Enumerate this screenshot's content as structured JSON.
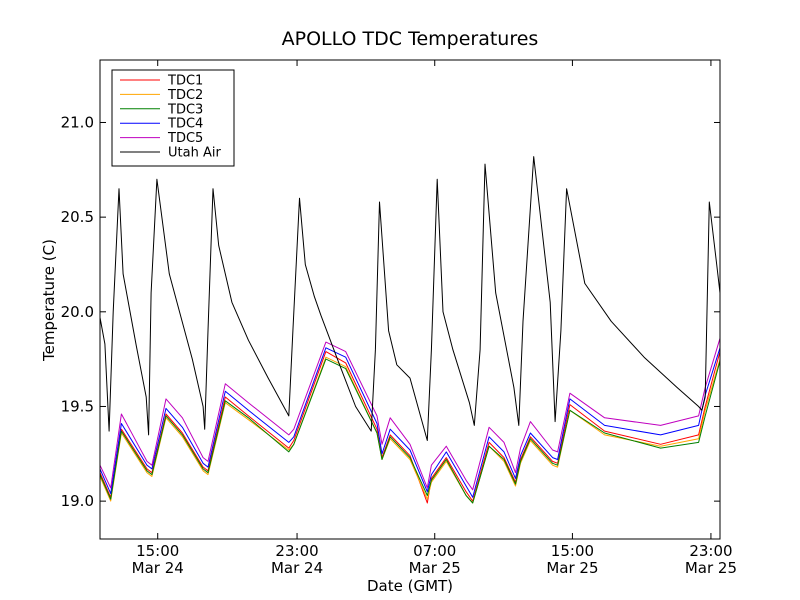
{
  "chart_data": {
    "type": "line",
    "title": "APOLLO TDC Temperatures",
    "xlabel": "Date (GMT)",
    "ylabel": "Temperature (C)",
    "x_unit": "hours since Mar 24 10:30 GMT",
    "xlim": [
      0,
      37.6
    ],
    "ylim": [
      18.8,
      21.33
    ],
    "yticks": [
      {
        "value": 19.0,
        "label": "19.0"
      },
      {
        "value": 19.5,
        "label": "19.5"
      },
      {
        "value": 20.0,
        "label": "20.0"
      },
      {
        "value": 20.5,
        "label": "20.5"
      },
      {
        "value": 21.0,
        "label": "21.0"
      }
    ],
    "xticks": [
      {
        "value": 3.5,
        "time": "15:00",
        "date": "Mar 24"
      },
      {
        "value": 11.95,
        "time": "23:00",
        "date": "Mar 24"
      },
      {
        "value": 20.3,
        "time": "07:00",
        "date": "Mar 25"
      },
      {
        "value": 28.65,
        "time": "15:00",
        "date": "Mar 25"
      },
      {
        "value": 37.05,
        "time": "23:00",
        "date": "Mar 25"
      }
    ],
    "legend_position": "top-left",
    "grid": false,
    "series": [
      {
        "name": "TDC1",
        "color": "#ff0000",
        "x": [
          0,
          0.65,
          1.3,
          2.85,
          3.15,
          4.0,
          5.0,
          6.25,
          6.55,
          7.6,
          9.0,
          11.45,
          11.75,
          13.7,
          14.9,
          16.8,
          17.1,
          17.6,
          18.8,
          19.85,
          20.1,
          21.0,
          22.2,
          22.6,
          23.6,
          24.5,
          25.2,
          25.5,
          26.1,
          27.45,
          27.75,
          28.5,
          30.6,
          34.0,
          36.3,
          36.7,
          37.6
        ],
        "values": [
          19.15,
          19.02,
          19.38,
          19.17,
          19.15,
          19.46,
          19.36,
          19.18,
          19.16,
          19.55,
          19.45,
          19.28,
          19.32,
          19.79,
          19.73,
          19.38,
          19.23,
          19.35,
          19.24,
          18.99,
          19.12,
          19.23,
          19.05,
          19.0,
          19.31,
          19.23,
          19.1,
          19.22,
          19.34,
          19.21,
          19.2,
          19.51,
          19.37,
          19.3,
          19.35,
          19.5,
          19.79
        ]
      },
      {
        "name": "TDC2",
        "color": "#ffa500",
        "x": [
          0,
          0.65,
          1.3,
          2.85,
          3.15,
          4.0,
          5.0,
          6.25,
          6.55,
          7.6,
          9.0,
          11.45,
          11.75,
          13.7,
          14.9,
          16.8,
          17.1,
          17.6,
          18.8,
          19.85,
          20.1,
          21.0,
          22.2,
          22.6,
          23.6,
          24.5,
          25.2,
          25.5,
          26.1,
          27.45,
          27.75,
          28.5,
          30.6,
          34.0,
          36.3,
          36.7,
          37.6
        ],
        "values": [
          19.13,
          19.0,
          19.36,
          19.15,
          19.13,
          19.44,
          19.34,
          19.16,
          19.14,
          19.52,
          19.43,
          19.27,
          19.3,
          19.76,
          19.71,
          19.36,
          19.22,
          19.33,
          19.22,
          19.01,
          19.1,
          19.21,
          19.03,
          18.99,
          19.29,
          19.21,
          19.08,
          19.2,
          19.32,
          19.19,
          19.18,
          19.48,
          19.35,
          19.29,
          19.33,
          19.48,
          19.75
        ]
      },
      {
        "name": "TDC3",
        "color": "#008000",
        "x": [
          0,
          0.65,
          1.3,
          2.85,
          3.15,
          4.0,
          5.0,
          6.25,
          6.55,
          7.6,
          9.0,
          11.45,
          11.75,
          13.7,
          14.9,
          16.8,
          17.1,
          17.6,
          18.8,
          19.85,
          20.1,
          21.0,
          22.2,
          22.6,
          23.6,
          24.5,
          25.2,
          25.5,
          26.1,
          27.45,
          27.75,
          28.5,
          30.6,
          34.0,
          36.3,
          36.7,
          37.6
        ],
        "values": [
          19.14,
          19.01,
          19.37,
          19.16,
          19.14,
          19.45,
          19.35,
          19.17,
          19.15,
          19.53,
          19.44,
          19.26,
          19.3,
          19.75,
          19.7,
          19.36,
          19.22,
          19.34,
          19.23,
          19.03,
          19.11,
          19.22,
          19.03,
          18.99,
          19.29,
          19.22,
          19.09,
          19.21,
          19.33,
          19.2,
          19.19,
          19.48,
          19.36,
          19.28,
          19.31,
          19.45,
          19.74
        ]
      },
      {
        "name": "TDC4",
        "color": "#0000ff",
        "x": [
          0,
          0.65,
          1.3,
          2.85,
          3.15,
          4.0,
          5.0,
          6.25,
          6.55,
          7.6,
          9.0,
          11.45,
          11.75,
          13.7,
          14.9,
          16.8,
          17.1,
          17.6,
          18.8,
          19.85,
          20.1,
          21.0,
          22.2,
          22.6,
          23.6,
          24.5,
          25.2,
          25.5,
          26.1,
          27.45,
          27.75,
          28.5,
          30.6,
          34.0,
          36.3,
          36.7,
          37.6
        ],
        "values": [
          19.17,
          19.04,
          19.41,
          19.19,
          19.17,
          19.49,
          19.39,
          19.2,
          19.18,
          19.58,
          19.48,
          19.31,
          19.34,
          19.81,
          19.76,
          19.41,
          19.25,
          19.38,
          19.27,
          19.05,
          19.14,
          19.26,
          19.08,
          19.02,
          19.34,
          19.26,
          19.12,
          19.24,
          19.36,
          19.23,
          19.22,
          19.54,
          19.4,
          19.35,
          19.4,
          19.56,
          19.81
        ]
      },
      {
        "name": "TDC5",
        "color": "#bf00bf",
        "x": [
          0,
          0.65,
          1.3,
          2.85,
          3.15,
          4.0,
          5.0,
          6.25,
          6.55,
          7.6,
          9.0,
          11.45,
          11.75,
          13.7,
          14.9,
          16.8,
          17.1,
          17.6,
          18.8,
          19.85,
          20.1,
          21.0,
          22.2,
          22.6,
          23.6,
          24.5,
          25.2,
          25.5,
          26.1,
          27.45,
          27.75,
          28.5,
          30.6,
          34.0,
          36.3,
          36.7,
          37.6
        ],
        "values": [
          19.19,
          19.07,
          19.46,
          19.21,
          19.19,
          19.54,
          19.44,
          19.23,
          19.21,
          19.62,
          19.52,
          19.35,
          19.38,
          19.84,
          19.79,
          19.45,
          19.3,
          19.44,
          19.3,
          19.07,
          19.19,
          19.29,
          19.11,
          19.06,
          19.39,
          19.31,
          19.15,
          19.28,
          19.42,
          19.27,
          19.26,
          19.57,
          19.44,
          19.4,
          19.45,
          19.6,
          19.86
        ]
      },
      {
        "name": "Utah Air",
        "color": "#000000",
        "x": [
          0,
          0.3,
          0.55,
          0.8,
          1.15,
          1.4,
          2.2,
          2.8,
          2.95,
          3.1,
          3.45,
          4.2,
          5.6,
          6.25,
          6.35,
          6.55,
          6.85,
          7.2,
          8.0,
          9.0,
          10.2,
          11.45,
          11.7,
          12.1,
          12.45,
          13.0,
          13.4,
          14.4,
          15.5,
          16.45,
          16.7,
          16.95,
          17.5,
          18.0,
          18.8,
          19.85,
          20.1,
          20.45,
          20.8,
          21.4,
          22.4,
          22.7,
          23.05,
          23.35,
          24.0,
          25.1,
          25.4,
          25.65,
          26.3,
          27.3,
          27.6,
          27.95,
          28.3,
          29.4,
          31.0,
          33.0,
          35.0,
          36.3,
          36.5,
          36.7,
          36.95,
          37.4,
          37.6
        ],
        "values": [
          19.97,
          19.83,
          19.37,
          20.0,
          20.65,
          20.2,
          19.82,
          19.55,
          19.35,
          20.1,
          20.7,
          20.2,
          19.75,
          19.5,
          19.38,
          19.9,
          20.65,
          20.35,
          20.05,
          19.85,
          19.65,
          19.45,
          19.9,
          20.6,
          20.25,
          20.08,
          19.98,
          19.75,
          19.5,
          19.37,
          19.8,
          20.58,
          19.9,
          19.72,
          19.65,
          19.32,
          19.8,
          20.7,
          20.0,
          19.8,
          19.52,
          19.4,
          19.8,
          20.78,
          20.1,
          19.6,
          19.4,
          19.95,
          20.82,
          20.05,
          19.42,
          19.9,
          20.65,
          20.15,
          19.95,
          19.76,
          19.6,
          19.5,
          19.48,
          19.55,
          20.58,
          20.25,
          20.1
        ]
      }
    ]
  }
}
